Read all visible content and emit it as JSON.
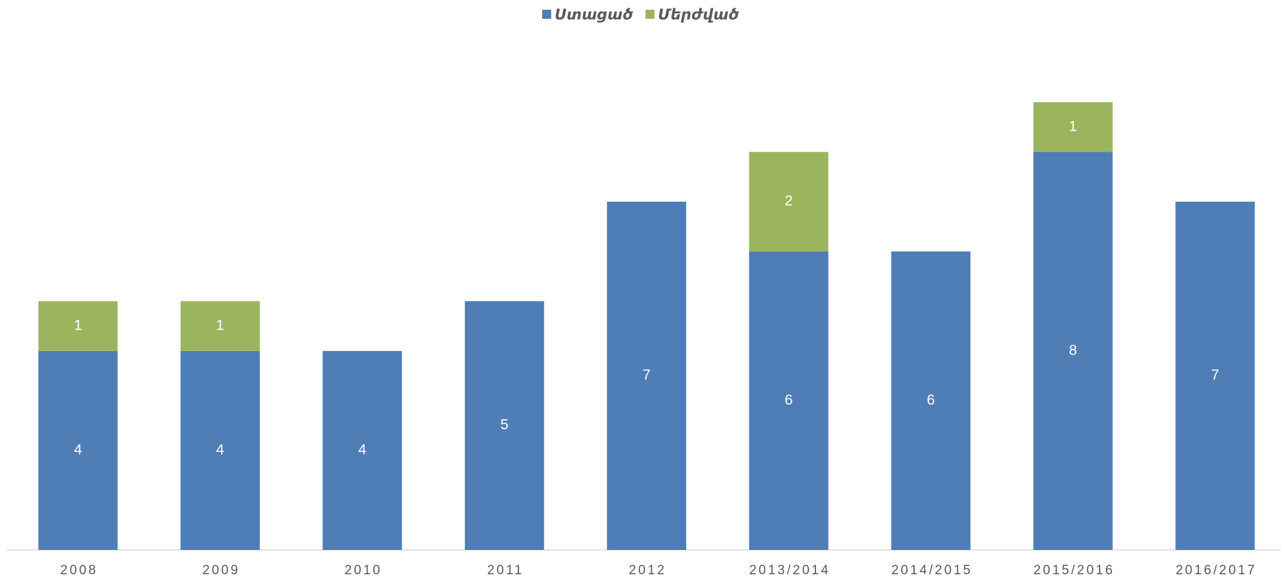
{
  "chart_data": {
    "type": "stacked_bar",
    "categories": [
      "2008",
      "2009",
      "2010",
      "2011",
      "2012",
      "2013/2014",
      "2014/2015",
      "2015/2016",
      "2016/2017"
    ],
    "series": [
      {
        "name": "Ստացած",
        "color": "#4f7db5",
        "values": [
          4,
          4,
          4,
          5,
          7,
          6,
          6,
          8,
          7
        ]
      },
      {
        "name": "Մերժված",
        "color": "#9bb55e",
        "values": [
          1,
          1,
          null,
          null,
          null,
          2,
          null,
          1,
          null
        ]
      }
    ],
    "legend": "top",
    "data_labels": true
  }
}
